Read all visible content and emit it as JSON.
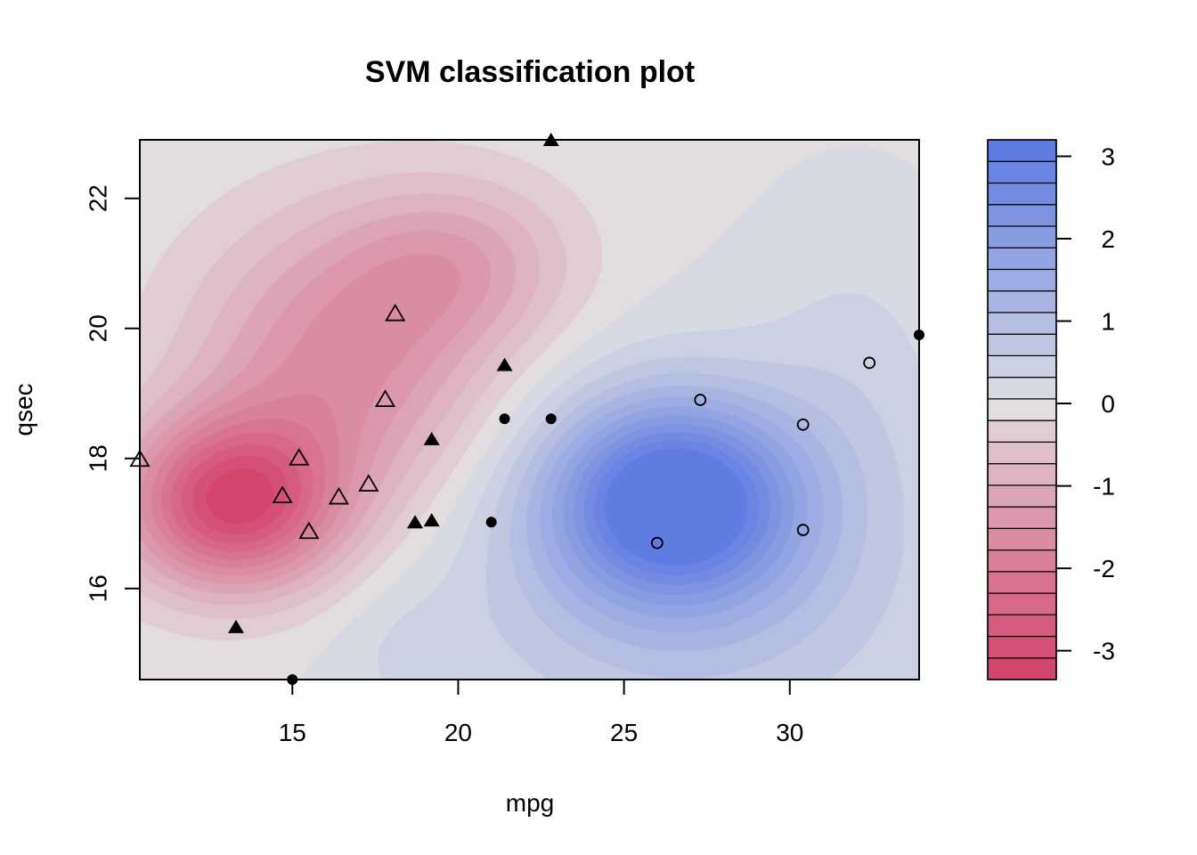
{
  "chart_data": {
    "type": "scatter",
    "title": "SVM classification plot",
    "xlabel": "mpg",
    "ylabel": "qsec",
    "xlim": [
      10.4,
      33.9
    ],
    "ylim": [
      14.6,
      22.9
    ],
    "xticks": [
      15,
      20,
      25,
      30
    ],
    "yticks": [
      16,
      18,
      20,
      22
    ],
    "colorbar": {
      "range": [
        -3.35,
        3.2
      ],
      "ticks": [
        -3,
        -2,
        -1,
        0,
        1,
        2,
        3
      ],
      "levels": 25,
      "low_color": "#d33f6a",
      "mid_color": "#e2e2e2",
      "high_color": "#5a78e2"
    },
    "decision_surface": {
      "description_centers": [
        {
          "mpg": 13.0,
          "qsec": 17.3,
          "value": -3.35
        },
        {
          "mpg": 18.0,
          "qsec": 20.7,
          "value": -2.0
        },
        {
          "mpg": 26.5,
          "qsec": 17.4,
          "value": 3.2
        }
      ]
    },
    "series": [
      {
        "marker": "filled-circle",
        "points": [
          {
            "x": 21.0,
            "y": 17.02
          },
          {
            "x": 21.4,
            "y": 18.61
          },
          {
            "x": 22.8,
            "y": 18.61
          },
          {
            "x": 15.0,
            "y": 14.6
          },
          {
            "x": 33.9,
            "y": 19.9
          }
        ]
      },
      {
        "marker": "open-circle",
        "points": [
          {
            "x": 26.0,
            "y": 16.7
          },
          {
            "x": 27.3,
            "y": 18.9
          },
          {
            "x": 30.4,
            "y": 18.52
          },
          {
            "x": 30.4,
            "y": 16.9
          },
          {
            "x": 32.4,
            "y": 19.47
          }
        ]
      },
      {
        "marker": "filled-triangle",
        "points": [
          {
            "x": 21.4,
            "y": 19.44
          },
          {
            "x": 19.2,
            "y": 18.3
          },
          {
            "x": 18.7,
            "y": 17.02
          },
          {
            "x": 19.2,
            "y": 17.05
          },
          {
            "x": 13.3,
            "y": 15.41
          },
          {
            "x": 22.8,
            "y": 22.9
          }
        ]
      },
      {
        "marker": "open-triangle",
        "points": [
          {
            "x": 18.1,
            "y": 20.22
          },
          {
            "x": 17.8,
            "y": 18.9
          },
          {
            "x": 15.2,
            "y": 18.0
          },
          {
            "x": 14.7,
            "y": 17.42
          },
          {
            "x": 16.4,
            "y": 17.4
          },
          {
            "x": 17.3,
            "y": 17.6
          },
          {
            "x": 15.5,
            "y": 16.87
          },
          {
            "x": 10.4,
            "y": 17.98
          }
        ]
      }
    ]
  }
}
